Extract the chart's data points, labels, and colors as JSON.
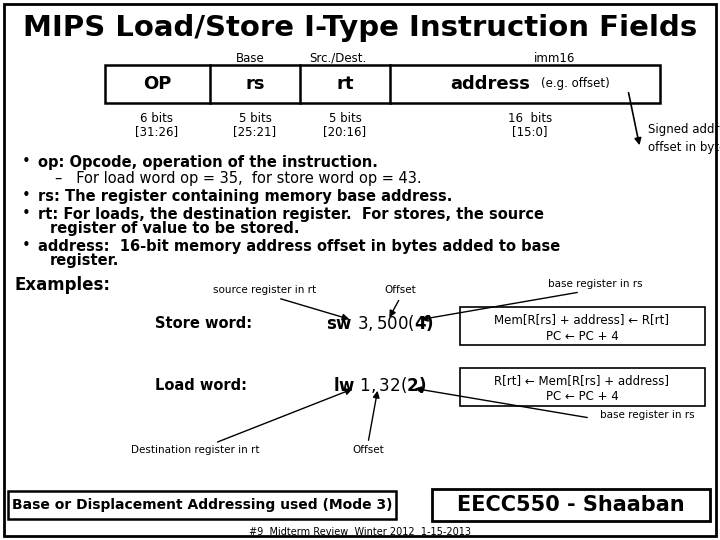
{
  "title": "MIPS Load/Store I-Type Instruction Fields",
  "bg_color": "#ffffff",
  "title_fontsize": 21,
  "table_label_base": "Base",
  "table_label_src": "Src./Dest.",
  "table_label_imm": "imm16",
  "table_headers": [
    "OP",
    "rs",
    "rt",
    "address"
  ],
  "table_addr_suffix": "(e.g. offset)",
  "bits_labels": [
    "6 bits",
    "5 bits",
    "5 bits",
    "16  bits"
  ],
  "bits_ranges": [
    "[31:26]",
    "[25:21]",
    "[20:16]",
    "[15:0]"
  ],
  "signed_text": "Signed address\noffset in bytes",
  "bullet1": "op: Opcode, operation of the instruction.",
  "bullet1sub": "–   For load word op = 35,  for store word op = 43.",
  "bullet2": "rs: The register containing memory base address.",
  "bullet3a": "rt: For loads, the destination register.  For stores, the source",
  "bullet3b": "register of value to be stored.",
  "bullet4a": "address:  16-bit memory address offset in bytes added to base",
  "bullet4b": "register.",
  "examples_label": "Examples:",
  "src_reg_label": "source register in rt",
  "offset_label1": "Offset",
  "base_reg_label1": "base register in rs",
  "store_label": "Store word:",
  "store_code": "sw $3, 500($4)",
  "store_box_line1": "Mem[R[rs] + address] ← R[rt]",
  "store_box_line2": "PC ← PC + 4",
  "load_label": "Load word:",
  "load_code": "lw $1, 32($2)",
  "load_box_line1": "R[rt] ← Mem[R[rs] + address]",
  "load_box_line2": "PC ← PC + 4",
  "base_reg_label2": "base register in rs",
  "dest_reg_label": "Destination register in rt",
  "offset_label2": "Offset",
  "bottom_left": "Base or Displacement Addressing used (Mode 3)",
  "bottom_right": "EECC550 - Shaaban",
  "footer": "#9  Midterm Review  Winter 2012  1-15-2013"
}
